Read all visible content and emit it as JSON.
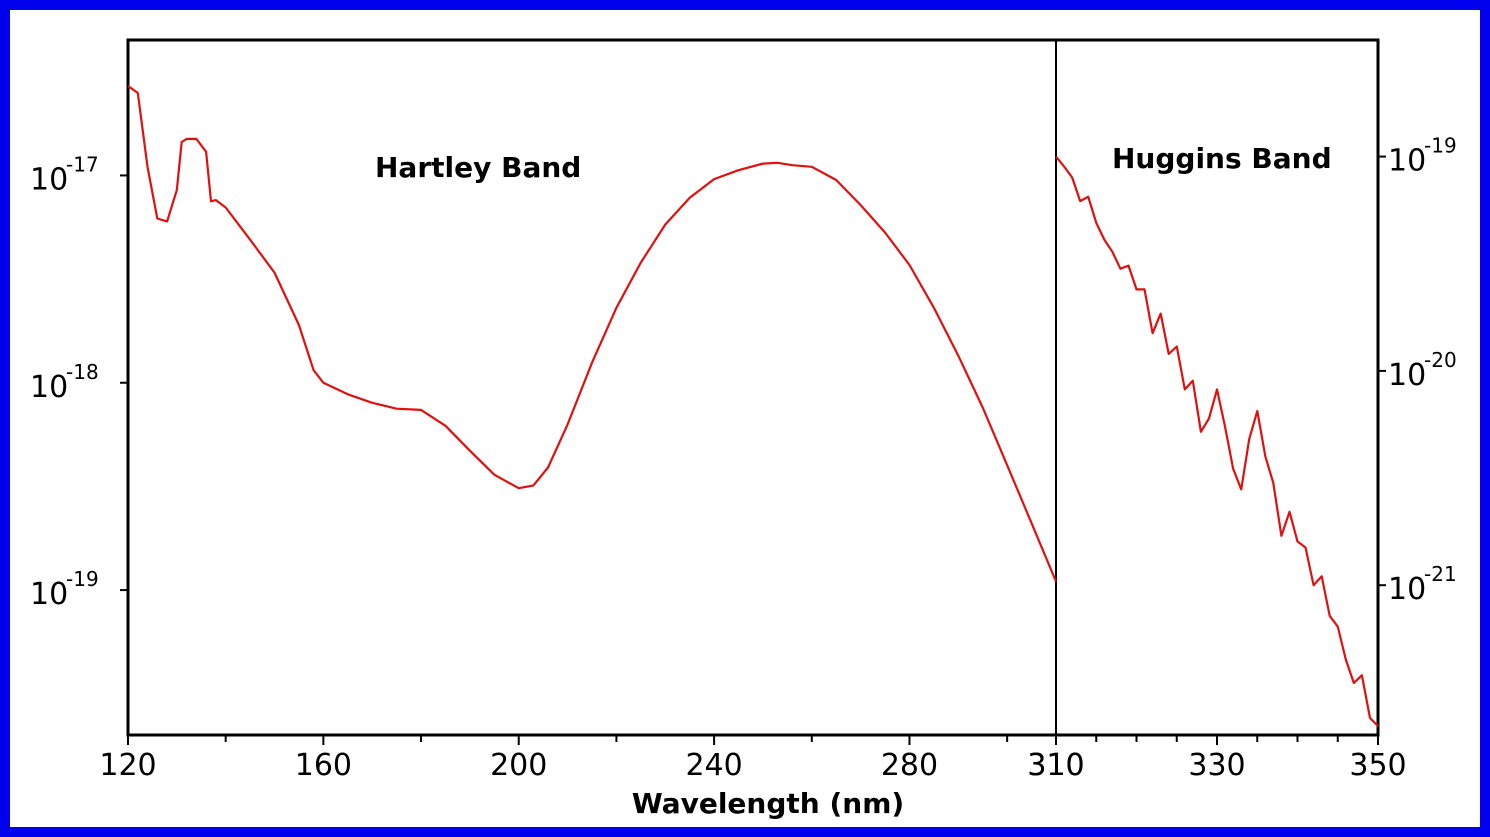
{
  "chart_data": {
    "type": "line",
    "title": "",
    "xlabel": "Wavelength (nm)",
    "ylabel": "",
    "colors": {
      "line": "#e01010",
      "background": "#ffffff",
      "border": "#0000ee"
    },
    "panels": [
      {
        "name": "Hartley Band",
        "xlim": [
          120,
          310
        ],
        "yscale": "log",
        "ylim": [
          2e-20,
          4.5e-17
        ],
        "axis_side": "left",
        "xticks": [
          120,
          160,
          200,
          240,
          280,
          310
        ],
        "minor_xticks": [
          140,
          180,
          220,
          260,
          300
        ],
        "yticks": [
          {
            "value": 1e-17,
            "base": "10",
            "exp": "-17"
          },
          {
            "value": 1e-18,
            "base": "10",
            "exp": "-18"
          },
          {
            "value": 1e-19,
            "base": "10",
            "exp": "-19"
          }
        ],
        "x": [
          120,
          122,
          124,
          126,
          128,
          130,
          131,
          132,
          134,
          136,
          137,
          138,
          140,
          145,
          150,
          155,
          158,
          160,
          165,
          170,
          175,
          180,
          185,
          190,
          195,
          200,
          203,
          206,
          210,
          215,
          220,
          225,
          230,
          235,
          240,
          245,
          250,
          253,
          256,
          260,
          265,
          270,
          275,
          280,
          285,
          290,
          295,
          300,
          305,
          310
        ],
        "y": [
          2.7e-17,
          2.5e-17,
          1.1e-17,
          6.2e-18,
          6e-18,
          8.5e-18,
          1.45e-17,
          1.5e-17,
          1.5e-17,
          1.3e-17,
          7.5e-18,
          7.6e-18,
          7e-18,
          4.9e-18,
          3.4e-18,
          1.9e-18,
          1.15e-18,
          1e-18,
          8.8e-19,
          8e-19,
          7.5e-19,
          7.4e-19,
          6.2e-19,
          4.7e-19,
          3.6e-19,
          3.1e-19,
          3.2e-19,
          3.9e-19,
          6.3e-19,
          1.25e-18,
          2.3e-18,
          3.8e-18,
          5.8e-18,
          7.8e-18,
          9.6e-18,
          1.06e-17,
          1.14e-17,
          1.15e-17,
          1.12e-17,
          1.1e-17,
          9.5e-18,
          7.2e-18,
          5.3e-18,
          3.7e-18,
          2.3e-18,
          1.35e-18,
          7.6e-19,
          4e-19,
          2.1e-19,
          1.1e-19
        ]
      },
      {
        "name": "Huggins Band",
        "xlim": [
          310,
          350
        ],
        "yscale": "log",
        "ylim": [
          2e-22,
          3.5e-19
        ],
        "axis_side": "right",
        "xticks": [
          310,
          330,
          350
        ],
        "minor_xticks": [
          315,
          320,
          325,
          335,
          340,
          345
        ],
        "yticks": [
          {
            "value": 1e-19,
            "base": "10",
            "exp": "-19"
          },
          {
            "value": 1e-20,
            "base": "10",
            "exp": "-20"
          },
          {
            "value": 1e-21,
            "base": "10",
            "exp": "-21"
          }
        ],
        "x": [
          310,
          311,
          312,
          313,
          314,
          315,
          316,
          317,
          318,
          319,
          320,
          321,
          322,
          323,
          324,
          325,
          326,
          327,
          328,
          329,
          330,
          331,
          332,
          333,
          334,
          335,
          336,
          337,
          338,
          339,
          340,
          341,
          342,
          343,
          344,
          345,
          346,
          347,
          348,
          349,
          350
        ],
        "y": [
          1e-19,
          9e-20,
          8e-20,
          6.2e-20,
          6.5e-20,
          4.9e-20,
          4.1e-20,
          3.6e-20,
          3e-20,
          3.1e-20,
          2.4e-20,
          2.4e-20,
          1.5e-20,
          1.85e-20,
          1.2e-20,
          1.3e-20,
          8.2e-21,
          9e-21,
          5.2e-21,
          6e-21,
          8.2e-21,
          5.5e-21,
          3.5e-21,
          2.8e-21,
          4.8e-21,
          6.5e-21,
          4e-21,
          3e-21,
          1.7e-21,
          2.2e-21,
          1.6e-21,
          1.5e-21,
          1e-21,
          1.1e-21,
          7.2e-22,
          6.4e-22,
          4.5e-22,
          3.5e-22,
          3.8e-22,
          2.4e-22,
          2.2e-22
        ]
      }
    ]
  }
}
